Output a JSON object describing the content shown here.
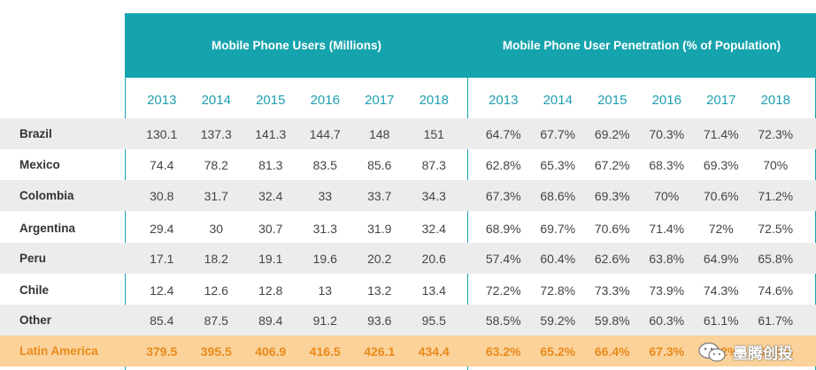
{
  "chart_data": {
    "type": "table",
    "headers": {
      "left": "Mobile Phone Users (Millions)",
      "right": "Mobile Phone User Penetration (% of Population)"
    },
    "years": [
      "2013",
      "2014",
      "2015",
      "2016",
      "2017",
      "2018"
    ],
    "rows": [
      {
        "label": "Brazil",
        "users": [
          "130.1",
          "137.3",
          "141.3",
          "144.7",
          "148",
          "151"
        ],
        "penetration": [
          "64.7%",
          "67.7%",
          "69.2%",
          "70.3%",
          "71.4%",
          "72.3%"
        ]
      },
      {
        "label": "Mexico",
        "users": [
          "74.4",
          "78.2",
          "81.3",
          "83.5",
          "85.6",
          "87.3"
        ],
        "penetration": [
          "62.8%",
          "65.3%",
          "67.2%",
          "68.3%",
          "69.3%",
          "70%"
        ]
      },
      {
        "label": "Colombia",
        "users": [
          "30.8",
          "31.7",
          "32.4",
          "33",
          "33.7",
          "34.3"
        ],
        "penetration": [
          "67.3%",
          "68.6%",
          "69.3%",
          "70%",
          "70.6%",
          "71.2%"
        ]
      },
      {
        "label": "Argentina",
        "users": [
          "29.4",
          "30",
          "30.7",
          "31.3",
          "31.9",
          "32.4"
        ],
        "penetration": [
          "68.9%",
          "69.7%",
          "70.6%",
          "71.4%",
          "72%",
          "72.5%"
        ]
      },
      {
        "label": "Peru",
        "users": [
          "17.1",
          "18.2",
          "19.1",
          "19.6",
          "20.2",
          "20.6"
        ],
        "penetration": [
          "57.4%",
          "60.4%",
          "62.6%",
          "63.8%",
          "64.9%",
          "65.8%"
        ]
      },
      {
        "label": "Chile",
        "users": [
          "12.4",
          "12.6",
          "12.8",
          "13",
          "13.2",
          "13.4"
        ],
        "penetration": [
          "72.2%",
          "72.8%",
          "73.3%",
          "73.9%",
          "74.3%",
          "74.6%"
        ]
      },
      {
        "label": "Other",
        "users": [
          "85.4",
          "87.5",
          "89.4",
          "91.2",
          "93.6",
          "95.5"
        ],
        "penetration": [
          "58.5%",
          "59.2%",
          "59.8%",
          "60.3%",
          "61.1%",
          "61.7%"
        ]
      },
      {
        "label": "Latin America",
        "users": [
          "379.5",
          "395.5",
          "406.9",
          "416.5",
          "426.1",
          "434.4"
        ],
        "penetration": [
          "63.2%",
          "65.2%",
          "66.4%",
          "67.3%",
          "68.2%",
          "68.9%"
        ],
        "total": true
      }
    ]
  },
  "watermark": {
    "text": "墨腾创投",
    "icon": "wechat-icon"
  },
  "colors": {
    "header": "#15a3ad",
    "year": "#1d9fb1",
    "shade": "#ececec",
    "total_bg": "#fbd29a",
    "total_text": "#e88a1a"
  }
}
